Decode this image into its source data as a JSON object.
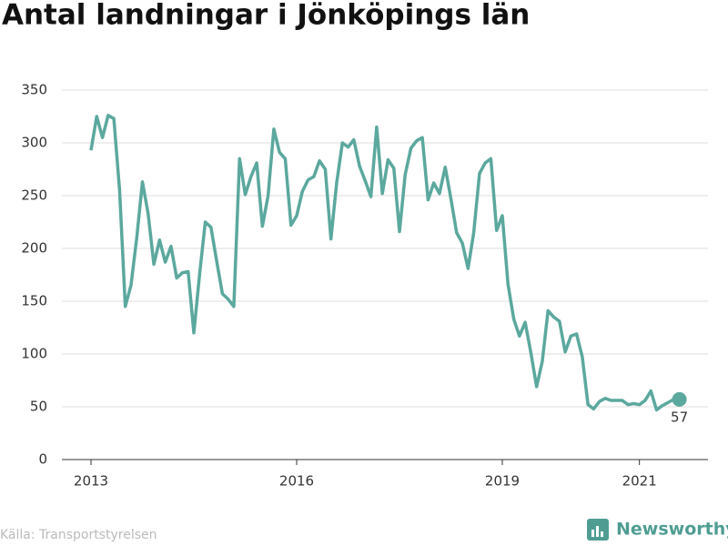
{
  "chart_data": {
    "type": "line",
    "title": "Antal landningar i Jönköpings län",
    "source": "Källa: Transportstyrelsen",
    "brand": "Newsworthy",
    "color": "#5ba89e",
    "x": [
      2013,
      2013.083,
      2013.167,
      2013.25,
      2013.333,
      2013.417,
      2013.5,
      2013.583,
      2013.667,
      2013.75,
      2013.833,
      2013.917,
      2014,
      2014.083,
      2014.167,
      2014.25,
      2014.333,
      2014.417,
      2014.5,
      2014.583,
      2014.667,
      2014.75,
      2014.833,
      2014.917,
      2015,
      2015.083,
      2015.167,
      2015.25,
      2015.333,
      2015.417,
      2015.5,
      2015.583,
      2015.667,
      2015.75,
      2015.833,
      2015.917,
      2016,
      2016.083,
      2016.167,
      2016.25,
      2016.333,
      2016.417,
      2016.5,
      2016.583,
      2016.667,
      2016.75,
      2016.833,
      2016.917,
      2017,
      2017.083,
      2017.167,
      2017.25,
      2017.333,
      2017.417,
      2017.5,
      2017.583,
      2017.667,
      2017.75,
      2017.833,
      2017.917,
      2018,
      2018.083,
      2018.167,
      2018.25,
      2018.333,
      2018.417,
      2018.5,
      2018.583,
      2018.667,
      2018.75,
      2018.833,
      2018.917,
      2019,
      2019.083,
      2019.167,
      2019.25,
      2019.333,
      2019.417,
      2019.5,
      2019.583,
      2019.667,
      2019.75,
      2019.833,
      2019.917,
      2020,
      2020.083,
      2020.167,
      2020.25,
      2020.333,
      2020.417,
      2020.5,
      2020.583,
      2020.667,
      2020.75,
      2020.833,
      2020.917,
      2021,
      2021.083,
      2021.167,
      2021.25,
      2021.333,
      2021.417,
      2021.5,
      2021.583
    ],
    "values": [
      293,
      325,
      305,
      326,
      323,
      255,
      145,
      165,
      210,
      263,
      233,
      185,
      208,
      187,
      202,
      172,
      177,
      178,
      120,
      175,
      225,
      220,
      188,
      157,
      152,
      145,
      285,
      251,
      268,
      281,
      221,
      250,
      313,
      291,
      285,
      222,
      231,
      254,
      265,
      268,
      283,
      275,
      209,
      262,
      300,
      296,
      303,
      278,
      264,
      249,
      315,
      252,
      284,
      276,
      216,
      270,
      295,
      302,
      305,
      246,
      262,
      252,
      277,
      247,
      215,
      205,
      181,
      215,
      271,
      281,
      285,
      217,
      231,
      166,
      133,
      117,
      130,
      101,
      69,
      93,
      141,
      135,
      131,
      102,
      117,
      119,
      97,
      52,
      48,
      55,
      58,
      56,
      56,
      56,
      52,
      53,
      52,
      56,
      65,
      47,
      51,
      54,
      57,
      57
    ],
    "xlim": [
      2012.575,
      2022.0
    ],
    "xticks": [
      2013,
      2016,
      2019,
      2021
    ],
    "ylim": [
      0,
      350
    ],
    "yticks": [
      0,
      50,
      100,
      150,
      200,
      250,
      300,
      350
    ],
    "grid": true
  }
}
